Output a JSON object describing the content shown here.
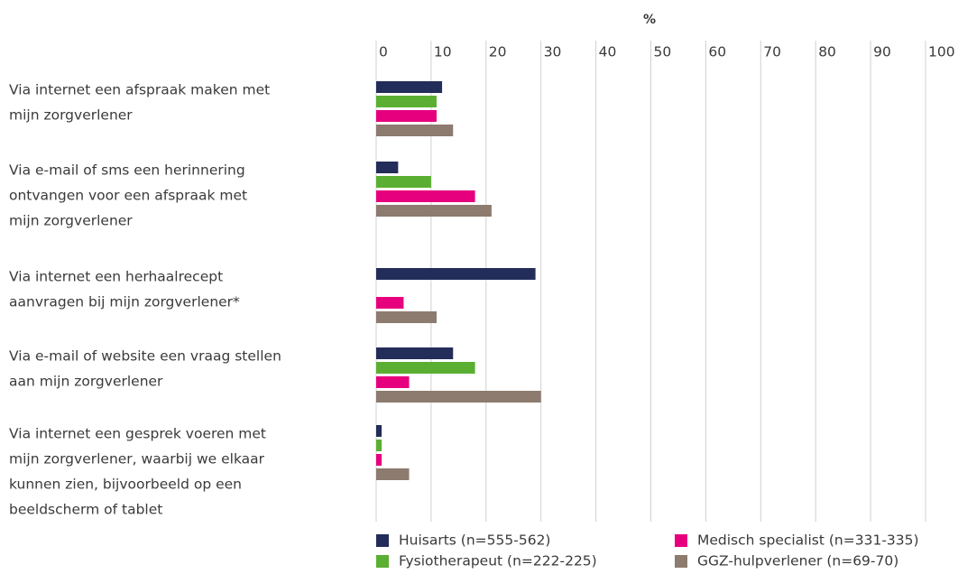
{
  "chart_data": {
    "type": "barh",
    "xlabel": "%",
    "categories": [
      [
        "Via internet een afspraak maken met",
        "mijn zorgverlener"
      ],
      [
        "Via e-mail of sms een herinnering",
        "ontvangen voor een afspraak met",
        "mijn zorgverlener"
      ],
      [
        "Via internet een herhaalrecept",
        "aanvragen bij mijn zorgverlener*"
      ],
      [
        "Via e-mail of website een vraag stellen",
        "aan mijn zorgverlener"
      ],
      [
        "Via internet een gesprek voeren met",
        "mijn zorgverlener, waarbij we elkaar",
        "kunnen zien, bijvoorbeeld op een",
        "beeldscherm of tablet"
      ]
    ],
    "series": [
      {
        "name": "Huisarts (n=555-562)",
        "color": "#232d5a",
        "values": [
          12,
          4,
          29,
          14,
          1
        ]
      },
      {
        "name": "Fysiotherapeut (n=222-225)",
        "color": "#5aaf32",
        "values": [
          11,
          10,
          null,
          18,
          1
        ]
      },
      {
        "name": "Medisch specialist (n=331-335)",
        "color": "#e6007e",
        "values": [
          11,
          18,
          5,
          6,
          1
        ]
      },
      {
        "name": "GGZ-hulpverlener (n=69-70)",
        "color": "#8c7b6e",
        "values": [
          14,
          21,
          11,
          30,
          6
        ]
      }
    ],
    "xlim": [
      0,
      100
    ],
    "xticks": [
      0,
      10,
      20,
      30,
      40,
      50,
      60,
      70,
      80,
      90,
      100
    ],
    "grid": true,
    "legend": "bottom"
  }
}
